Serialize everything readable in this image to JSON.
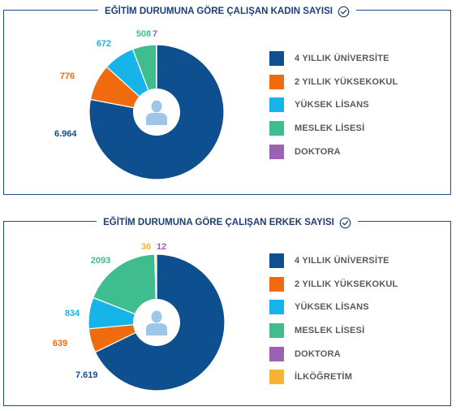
{
  "colors": {
    "frame": "#1c4f8c",
    "title": "#1c3f73",
    "center_circle": "#ffffff",
    "person": "#9dc6ea"
  },
  "chart_data": [
    {
      "type": "pie",
      "title": "EĞİTİM DURUMUNA GÖRE ÇALIŞAN KADIN SAYISI",
      "title_icon": "check-circle-icon",
      "center_icon": "person-icon",
      "categories": [
        "4 YILLIK ÜNİVERSİTE",
        "2 YILLIK YÜKSEKOKUL",
        "YÜKSEK LİSANS",
        "MESLEK LİSESİ",
        "DOKTORA"
      ],
      "values": [
        6964,
        776,
        672,
        508,
        7
      ],
      "value_labels": [
        "6.964",
        "776",
        "672",
        "508",
        "7"
      ],
      "colors": [
        "#0d4f8f",
        "#ef6b0e",
        "#17b4e9",
        "#3fbd8f",
        "#9b62b3"
      ],
      "legend_position": "right"
    },
    {
      "type": "pie",
      "title": "EĞİTİM DURUMUNA GÖRE ÇALIŞAN ERKEK SAYISI",
      "title_icon": "check-circle-icon",
      "center_icon": "person-icon",
      "categories": [
        "4 YILLIK ÜNİVERSİTE",
        "2 YILLIK YÜKSEKOKUL",
        "YÜKSEK LİSANS",
        "MESLEK LİSESİ",
        "DOKTORA",
        "İLKÖĞRETİM"
      ],
      "values": [
        7619,
        639,
        834,
        2093,
        12,
        36
      ],
      "value_labels": [
        "7.619",
        "639",
        "834",
        "2093",
        "12",
        "36"
      ],
      "colors": [
        "#0d4f8f",
        "#ef6b0e",
        "#17b4e9",
        "#3fbd8f",
        "#9b62b3",
        "#f7b334"
      ],
      "legend_position": "right"
    }
  ]
}
